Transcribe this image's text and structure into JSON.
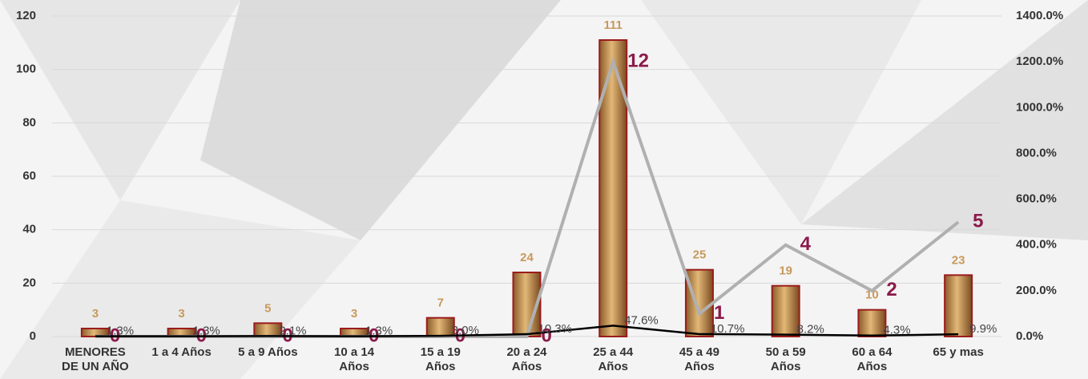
{
  "chart_data": {
    "type": "bar",
    "categories": [
      "MENORES DE UN AÑO",
      "1 a 4 Años",
      "5 a 9 Años",
      "10 a 14 Años",
      "15 a 19 Años",
      "20 a 24 Años",
      "25 a 44 Años",
      "45 a 49 Años",
      "50 a 59 Años",
      "60 a 64 Años",
      "65 y mas"
    ],
    "series": [
      {
        "type": "bar",
        "color": "#c8995c",
        "values": [
          3,
          3,
          5,
          3,
          7,
          24,
          111,
          25,
          19,
          10,
          23
        ]
      },
      {
        "type": "line",
        "axis": "y2",
        "color": "#b0b0b0",
        "values": [
          0,
          0,
          0,
          0,
          0,
          0,
          12,
          1,
          4,
          2,
          5
        ]
      },
      {
        "type": "line",
        "axis": "y2",
        "color": "#000000",
        "values": [
          0.013,
          0.013,
          0.021,
          0.013,
          0.03,
          0.103,
          0.476,
          0.107,
          0.082,
          0.043,
          0.099
        ],
        "value_labels": [
          "1.3%",
          "1.3%",
          "2.1%",
          "1.3%",
          "3.0%",
          "10.3%",
          "47.6%",
          "10.7%",
          "8.2%",
          "4.3%",
          "9.9%"
        ]
      }
    ],
    "ylim": [
      0,
      120
    ],
    "yticks": [
      0,
      20,
      40,
      60,
      80,
      100,
      120
    ],
    "y2lim": [
      0,
      14
    ],
    "y2ticks": [
      {
        "value": 0,
        "label": "0.0%"
      },
      {
        "value": 2,
        "label": "200.0%"
      },
      {
        "value": 4,
        "label": "400.0%"
      },
      {
        "value": 6,
        "label": "600.0%"
      },
      {
        "value": 8,
        "label": "800.0%"
      },
      {
        "value": 10,
        "label": "1000.0%"
      },
      {
        "value": 12,
        "label": "1200.0%"
      },
      {
        "value": 14,
        "label": "1400.0%"
      }
    ],
    "grid": true
  }
}
